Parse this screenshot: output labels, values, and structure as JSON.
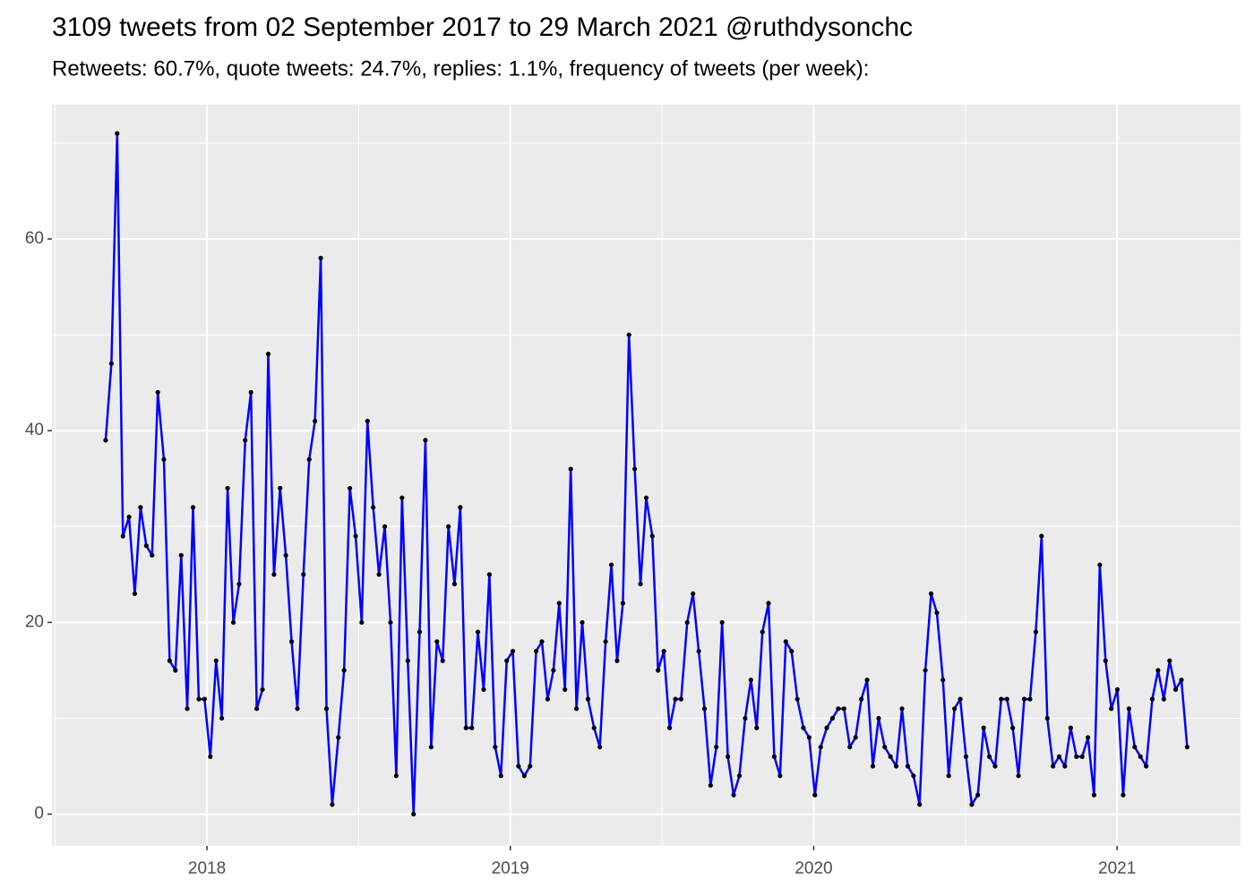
{
  "chart_data": {
    "type": "line",
    "title": "3109 tweets from 02 September 2017 to 29 March 2021 @ruthdysonchc",
    "subtitle": "Retweets: 60.7%, quote tweets: 24.7%, replies: 1.1%, frequency of tweets (per week):",
    "color": "#0000ff",
    "point_color": "#000000",
    "grid": true,
    "xlim": [
      2017.489,
      2021.407
    ],
    "xticks": [
      2018,
      2019,
      2020,
      2021
    ],
    "ylim": [
      -3.3,
      74
    ],
    "yticks": [
      0,
      20,
      40,
      60
    ],
    "x": [
      2017.666,
      2017.685,
      2017.704,
      2017.723,
      2017.743,
      2017.762,
      2017.781,
      2017.8,
      2017.819,
      2017.838,
      2017.858,
      2017.877,
      2017.896,
      2017.915,
      2017.935,
      2017.954,
      2017.973,
      2017.992,
      2018.011,
      2018.03,
      2018.049,
      2018.068,
      2018.087,
      2018.106,
      2018.126,
      2018.145,
      2018.164,
      2018.183,
      2018.202,
      2018.221,
      2018.241,
      2018.26,
      2018.279,
      2018.298,
      2018.318,
      2018.337,
      2018.356,
      2018.375,
      2018.394,
      2018.413,
      2018.433,
      2018.452,
      2018.471,
      2018.49,
      2018.51,
      2018.529,
      2018.548,
      2018.567,
      2018.586,
      2018.605,
      2018.624,
      2018.643,
      2018.662,
      2018.681,
      2018.701,
      2018.72,
      2018.739,
      2018.758,
      2018.777,
      2018.796,
      2018.816,
      2018.835,
      2018.854,
      2018.873,
      2018.893,
      2018.912,
      2018.931,
      2018.95,
      2018.969,
      2018.988,
      2019.008,
      2019.027,
      2019.046,
      2019.065,
      2019.085,
      2019.104,
      2019.123,
      2019.142,
      2019.161,
      2019.18,
      2019.199,
      2019.218,
      2019.237,
      2019.256,
      2019.276,
      2019.295,
      2019.314,
      2019.333,
      2019.352,
      2019.371,
      2019.391,
      2019.41,
      2019.429,
      2019.448,
      2019.468,
      2019.487,
      2019.506,
      2019.525,
      2019.544,
      2019.563,
      2019.583,
      2019.602,
      2019.621,
      2019.64,
      2019.66,
      2019.679,
      2019.698,
      2019.717,
      2019.736,
      2019.755,
      2019.774,
      2019.793,
      2019.812,
      2019.831,
      2019.851,
      2019.87,
      2019.889,
      2019.908,
      2019.927,
      2019.946,
      2019.966,
      2019.985,
      2020.004,
      2020.023,
      2020.043,
      2020.062,
      2020.081,
      2020.1,
      2020.119,
      2020.138,
      2020.157,
      2020.176,
      2020.195,
      2020.214,
      2020.234,
      2020.253,
      2020.272,
      2020.291,
      2020.31,
      2020.329,
      2020.349,
      2020.368,
      2020.387,
      2020.406,
      2020.426,
      2020.445,
      2020.464,
      2020.483,
      2020.502,
      2020.521,
      2020.541,
      2020.56,
      2020.579,
      2020.598,
      2020.618,
      2020.637,
      2020.656,
      2020.675,
      2020.694,
      2020.713,
      2020.732,
      2020.751,
      2020.77,
      2020.789,
      2020.809,
      2020.828,
      2020.847,
      2020.866,
      2020.885,
      2020.904,
      2020.924,
      2020.943,
      2020.962,
      2020.981,
      2021.001,
      2021.02,
      2021.039,
      2021.058,
      2021.077,
      2021.096,
      2021.116,
      2021.135,
      2021.154,
      2021.173,
      2021.193,
      2021.212,
      2021.231
    ],
    "values": [
      39,
      47,
      71,
      29,
      31,
      23,
      32,
      28,
      27,
      44,
      37,
      16,
      15,
      27,
      11,
      32,
      12,
      12,
      6,
      16,
      10,
      34,
      20,
      24,
      39,
      44,
      11,
      13,
      48,
      25,
      34,
      27,
      18,
      11,
      25,
      37,
      41,
      58,
      11,
      1,
      8,
      15,
      34,
      29,
      20,
      41,
      32,
      25,
      30,
      20,
      4,
      33,
      16,
      0,
      19,
      39,
      7,
      18,
      16,
      30,
      24,
      32,
      9,
      9,
      19,
      13,
      25,
      7,
      4,
      16,
      17,
      5,
      4,
      5,
      17,
      18,
      12,
      15,
      22,
      13,
      36,
      11,
      20,
      12,
      9,
      7,
      18,
      26,
      16,
      22,
      50,
      36,
      24,
      33,
      29,
      15,
      17,
      9,
      12,
      12,
      20,
      23,
      17,
      11,
      3,
      7,
      20,
      6,
      2,
      4,
      10,
      14,
      9,
      19,
      22,
      6,
      4,
      18,
      17,
      12,
      9,
      8,
      2,
      7,
      9,
      10,
      11,
      11,
      7,
      8,
      12,
      14,
      5,
      10,
      7,
      6,
      5,
      11,
      5,
      4,
      1,
      15,
      23,
      21,
      14,
      4,
      11,
      12,
      6,
      1,
      2,
      9,
      6,
      5,
      12,
      12,
      9,
      4,
      12,
      12,
      19,
      29,
      10,
      5,
      6,
      5,
      9,
      6,
      6,
      8,
      2,
      26,
      16,
      11,
      13,
      2,
      11,
      7,
      6,
      5,
      12,
      15,
      12,
      16,
      13,
      14,
      7
    ]
  }
}
